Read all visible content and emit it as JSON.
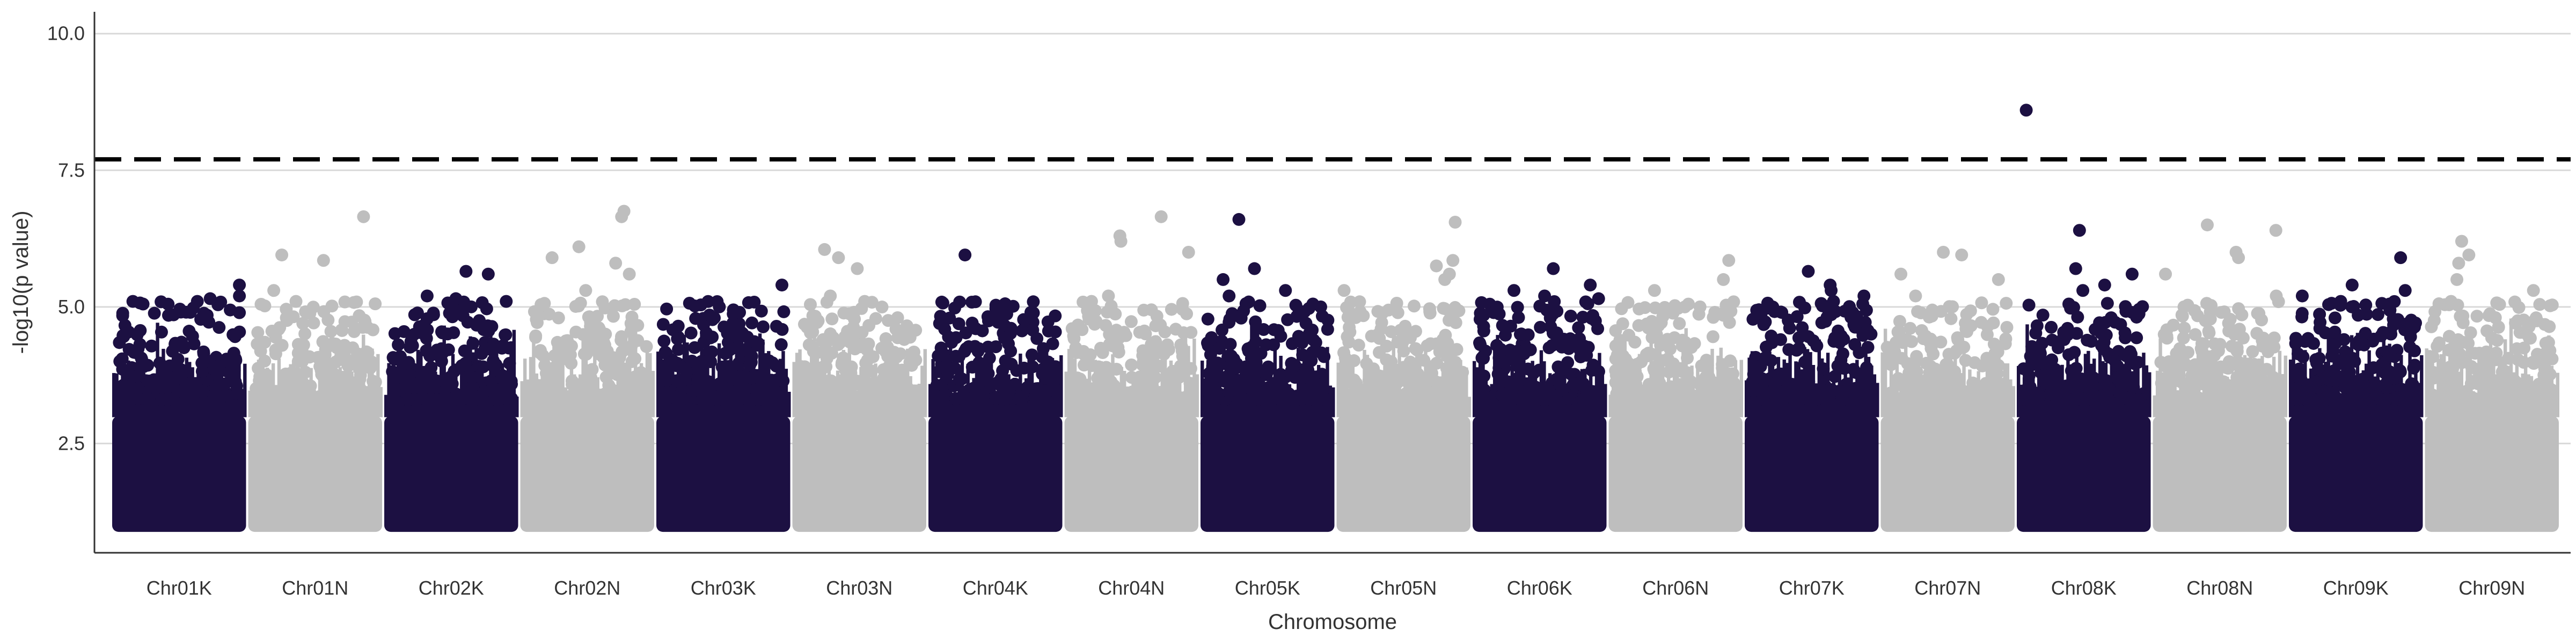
{
  "chart_data": {
    "type": "scatter",
    "title": "",
    "xlabel": "Chromosome",
    "ylabel": "-log10(p value)",
    "ylim": [
      0.5,
      10.4
    ],
    "yticks": [
      2.5,
      5.0,
      7.5,
      10.0
    ],
    "ytick_labels": [
      "2.5",
      "5.0",
      "7.5",
      "10.0"
    ],
    "grid": "horizontal-major",
    "legend": "none",
    "threshold": 7.7,
    "threshold_style": "dashed-black",
    "colors": {
      "dark": "#1c1042",
      "light": "#bebebe",
      "grid": "#d9d9d9",
      "axis": "#333333"
    },
    "dense_band_max": 3.0,
    "floor": 1.0,
    "categories": [
      "Chr01K",
      "Chr01N",
      "Chr02K",
      "Chr02N",
      "Chr03K",
      "Chr03N",
      "Chr04K",
      "Chr04N",
      "Chr05K",
      "Chr05N",
      "Chr06K",
      "Chr06N",
      "Chr07K",
      "Chr07N",
      "Chr08K",
      "Chr08N",
      "Chr09K",
      "Chr09N"
    ],
    "series": [
      {
        "category": "Chr01K",
        "color": "dark",
        "top_values": [
          5.2,
          5.1,
          5.4,
          5.15,
          5.1,
          4.9,
          4.8
        ]
      },
      {
        "category": "Chr01N",
        "color": "light",
        "top_values": [
          6.65,
          5.95,
          5.85,
          5.3,
          5.1,
          4.8
        ]
      },
      {
        "category": "Chr02K",
        "color": "dark",
        "top_values": [
          5.65,
          5.6,
          5.2,
          5.15,
          5.1,
          5.0
        ]
      },
      {
        "category": "Chr02N",
        "color": "light",
        "top_values": [
          6.75,
          6.65,
          6.1,
          5.9,
          5.8,
          5.6,
          5.3
        ]
      },
      {
        "category": "Chr03K",
        "color": "dark",
        "top_values": [
          5.4,
          5.0,
          4.9,
          4.85
        ]
      },
      {
        "category": "Chr03N",
        "color": "light",
        "top_values": [
          6.05,
          5.9,
          5.7,
          5.2,
          5.1
        ]
      },
      {
        "category": "Chr04K",
        "color": "dark",
        "top_values": [
          5.95,
          4.95,
          4.9,
          4.7
        ]
      },
      {
        "category": "Chr04N",
        "color": "light",
        "top_values": [
          6.65,
          6.3,
          6.2,
          6.0,
          5.2,
          5.1
        ]
      },
      {
        "category": "Chr05K",
        "color": "dark",
        "top_values": [
          6.6,
          5.7,
          5.5,
          5.3,
          5.2,
          5.0
        ]
      },
      {
        "category": "Chr05N",
        "color": "light",
        "top_values": [
          6.55,
          5.85,
          5.75,
          5.6,
          5.5,
          5.3
        ]
      },
      {
        "category": "Chr06K",
        "color": "dark",
        "top_values": [
          5.7,
          5.4,
          5.3,
          5.2,
          5.15
        ]
      },
      {
        "category": "Chr06N",
        "color": "light",
        "top_values": [
          5.85,
          5.5,
          5.3,
          5.0,
          4.9
        ]
      },
      {
        "category": "Chr07K",
        "color": "dark",
        "top_values": [
          5.65,
          5.4,
          5.3,
          5.2,
          5.1
        ]
      },
      {
        "category": "Chr07N",
        "color": "light",
        "top_values": [
          6.0,
          5.95,
          5.6,
          5.5,
          5.2
        ]
      },
      {
        "category": "Chr08K",
        "color": "dark",
        "top_values": [
          8.6,
          6.4,
          5.7,
          5.6,
          5.4,
          5.3
        ]
      },
      {
        "category": "Chr08N",
        "color": "light",
        "top_values": [
          6.5,
          6.4,
          6.0,
          5.9,
          5.6,
          5.2
        ]
      },
      {
        "category": "Chr09K",
        "color": "dark",
        "top_values": [
          5.9,
          5.4,
          5.3,
          5.2,
          5.1,
          5.0
        ]
      },
      {
        "category": "Chr09N",
        "color": "light",
        "top_values": [
          6.2,
          5.95,
          5.8,
          5.5,
          5.3,
          5.1
        ]
      }
    ]
  }
}
